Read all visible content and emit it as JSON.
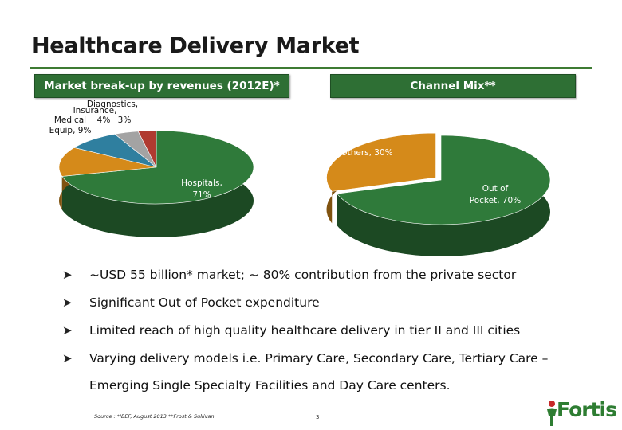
{
  "slide": {
    "title": "Healthcare Delivery Market",
    "page_number": "3",
    "source": "Source : *IBEF, August 2013 **Frost & Sullivan",
    "logo_text": "Fortis"
  },
  "left_box": {
    "label": "Market break-up by revenues (2012E)*"
  },
  "right_box": {
    "label": "Channel Mix**"
  },
  "chart_data": [
    {
      "type": "pie",
      "title": "Market break-up by revenues (2012E)*",
      "slices": [
        {
          "label": "Hospitals,",
          "label2": "71%",
          "value": 71,
          "color": "#2f7a3a"
        },
        {
          "label": "",
          "label2": "",
          "value": 13,
          "color": "#d58a1a"
        },
        {
          "label": "Medical",
          "label2": "Equip, 9%",
          "value": 9,
          "color": "#2f7f9f"
        },
        {
          "label": "Insurance,",
          "label2": "4%",
          "value": 4,
          "color": "#a3a3a3"
        },
        {
          "label": "Diagnostics,",
          "label2": "3%",
          "value": 3,
          "color": "#b03a30"
        }
      ]
    },
    {
      "type": "pie",
      "title": "Channel Mix**",
      "slices": [
        {
          "label": "Out of",
          "label2": "Pocket, 70%",
          "value": 70,
          "color": "#2f7a3a"
        },
        {
          "label": "Others, 30%",
          "label2": "",
          "value": 30,
          "color": "#d58a1a"
        }
      ]
    }
  ],
  "bullets": [
    {
      "text": "~USD 55 billion* market; ~ 80% contribution from the private sector"
    },
    {
      "text": "Significant Out of Pocket expenditure"
    },
    {
      "text": "Limited reach of high quality healthcare delivery in tier II and III cities"
    },
    {
      "text": "Varying delivery models i.e. Primary Care, Secondary Care, Tertiary Care –",
      "continuation": "Emerging Single Specialty Facilities and Day Care centers."
    }
  ],
  "icons": {
    "bullet": "arrow-bullet-icon",
    "logo": "fortis-figure-icon"
  }
}
